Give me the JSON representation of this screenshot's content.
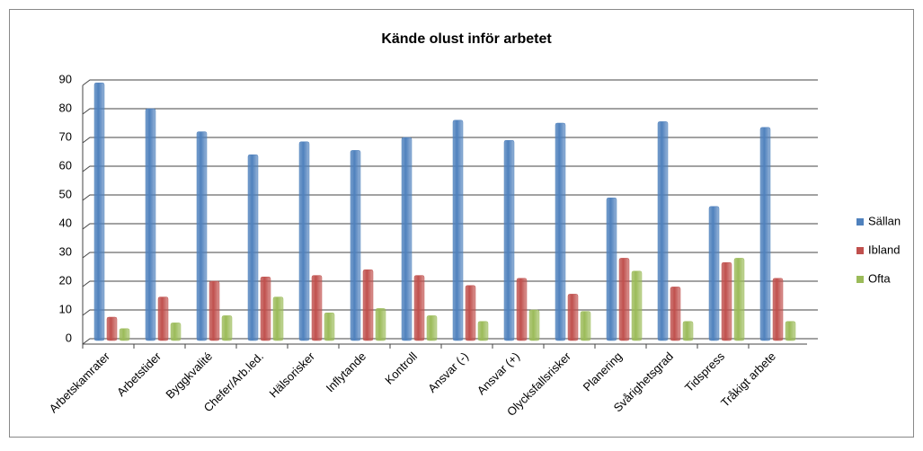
{
  "chart_data": {
    "type": "bar",
    "title": "Kände olust inför arbetet",
    "categories": [
      "Arbetskamrater",
      "Arbetstider",
      "Byggkvalité",
      "Chefer/Arb.led.",
      "Hälsorisker",
      "Inflytande",
      "Kontroll",
      "Ansvar (-)",
      "Ansvar (+)",
      "Olycksfallsrisker",
      "Planering",
      "Svårighetsgrad",
      "Tidspress",
      "Tråkigt arbete"
    ],
    "series": [
      {
        "name": "Sällan",
        "color": "#4F81BD",
        "values": [
          89,
          80,
          72,
          64,
          68.5,
          65.5,
          70,
          76,
          69,
          75,
          49,
          75.5,
          46,
          73.5
        ]
      },
      {
        "name": "Ibland",
        "color": "#C0504D",
        "values": [
          7.5,
          14.5,
          20,
          21.5,
          22,
          24,
          22,
          18.5,
          21,
          15.5,
          28,
          18,
          26.5,
          21
        ]
      },
      {
        "name": "Ofta",
        "color": "#9BBB59",
        "values": [
          3.5,
          5.5,
          8,
          14.5,
          9,
          10.5,
          8,
          6,
          10,
          9.5,
          23.5,
          6,
          28,
          6
        ]
      }
    ],
    "ylim": [
      0,
      90
    ],
    "yticks": [
      0,
      10,
      20,
      30,
      40,
      50,
      60,
      70,
      80,
      90
    ],
    "grid": true,
    "legend": "right"
  }
}
